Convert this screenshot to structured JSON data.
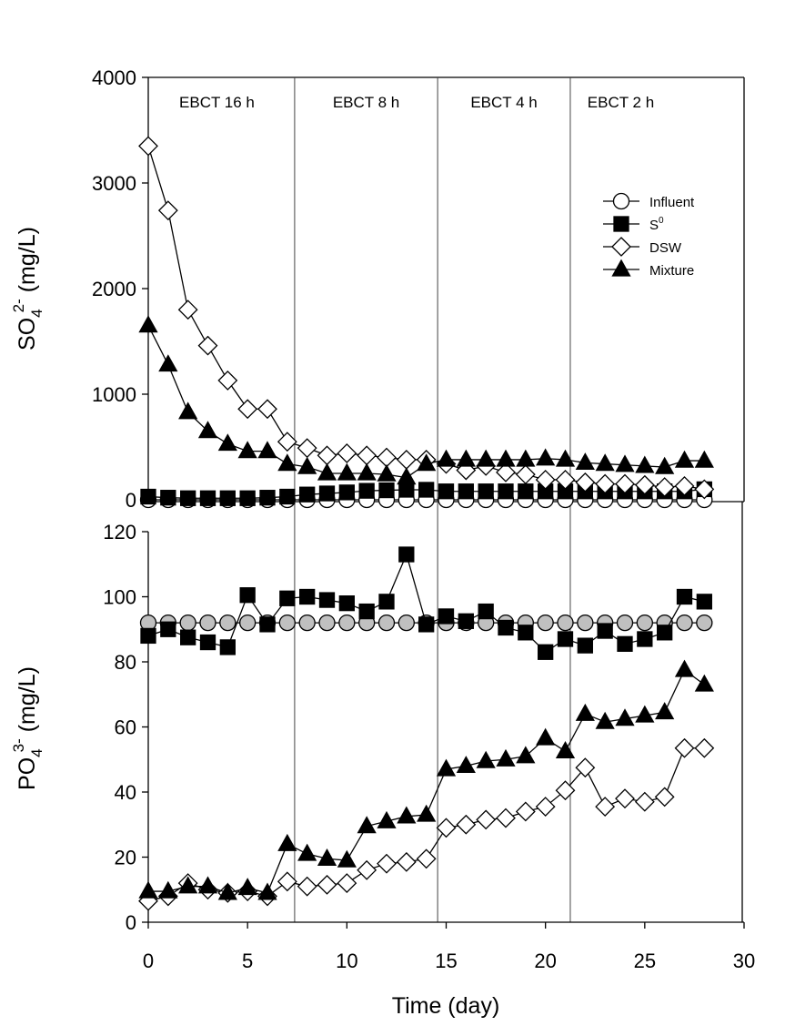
{
  "chart_data": [
    {
      "type": "line",
      "panel": "top",
      "ylabel_main": "SO",
      "ylabel_sub": "4",
      "ylabel_sup": "2-",
      "ylabel_unit": " (mg/L)",
      "ylim": [
        0,
        4000
      ],
      "yticks": [
        "0",
        "1000",
        "2000",
        "3000",
        "4000"
      ],
      "ytick_values": [
        0,
        1000,
        2000,
        3000,
        4000
      ],
      "xlim": [
        0,
        30
      ],
      "periods": [
        {
          "label": "EBCT 16 h",
          "start": 0,
          "end": 7.37
        },
        {
          "label": "EBCT 8 h",
          "start": 7.37,
          "end": 14.57
        },
        {
          "label": "EBCT 4 h",
          "start": 14.57,
          "end": 21.25
        },
        {
          "label": "EBCT 2 h",
          "start": 21.25,
          "end": 30
        }
      ],
      "legend": {
        "placement": "top-right",
        "entries": [
          {
            "name": "Influent",
            "marker": "circle-open",
            "sup": ""
          },
          {
            "name": "S",
            "marker": "square-filled",
            "sup": "0"
          },
          {
            "name": "DSW",
            "marker": "diamond-open",
            "sup": ""
          },
          {
            "name": "Mixture",
            "marker": "triangle-filled",
            "sup": ""
          }
        ]
      },
      "x": [
        0,
        1,
        2,
        3,
        4,
        5,
        6,
        7,
        8,
        9,
        10,
        11,
        12,
        13,
        14,
        15,
        16,
        17,
        18,
        19,
        20,
        21,
        22,
        23,
        24,
        25,
        26,
        27,
        28
      ],
      "series": [
        {
          "name": "Influent",
          "marker": "circle-open",
          "values": [
            0,
            0,
            0,
            0,
            0,
            0,
            0,
            0,
            0,
            0,
            0,
            0,
            0,
            0,
            0,
            0,
            0,
            0,
            0,
            0,
            0,
            0,
            0,
            0,
            0,
            0,
            0,
            0,
            0
          ]
        },
        {
          "name": "S0",
          "marker": "square-filled",
          "values": [
            30,
            20,
            15,
            15,
            15,
            15,
            20,
            30,
            50,
            60,
            70,
            85,
            90,
            95,
            95,
            80,
            80,
            80,
            80,
            80,
            80,
            80,
            80,
            80,
            80,
            80,
            80,
            80,
            100
          ]
        },
        {
          "name": "DSW",
          "marker": "diamond-open",
          "values": [
            3350,
            2740,
            1800,
            1460,
            1130,
            860,
            860,
            550,
            490,
            420,
            440,
            420,
            400,
            380,
            380,
            340,
            280,
            320,
            260,
            240,
            190,
            190,
            165,
            150,
            150,
            140,
            120,
            130,
            100
          ]
        },
        {
          "name": "Mixture",
          "marker": "triangle-filled",
          "values": [
            1650,
            1280,
            830,
            650,
            530,
            460,
            460,
            340,
            310,
            250,
            250,
            250,
            240,
            210,
            340,
            380,
            380,
            380,
            380,
            380,
            390,
            380,
            350,
            340,
            330,
            320,
            310,
            370,
            370
          ]
        }
      ]
    },
    {
      "type": "line",
      "panel": "bottom",
      "ylabel_main": "PO",
      "ylabel_sub": "4",
      "ylabel_sup": "3-",
      "ylabel_unit": " (mg/L)",
      "ylim": [
        0,
        120
      ],
      "yticks": [
        "0",
        "20",
        "40",
        "60",
        "80",
        "100",
        "120"
      ],
      "ytick_values": [
        0,
        20,
        40,
        60,
        80,
        100,
        120
      ],
      "xlim": [
        0,
        30
      ],
      "xlabel": "Time (day)",
      "xticks": [
        "0",
        "5",
        "10",
        "15",
        "20",
        "25",
        "30"
      ],
      "xtick_values": [
        0,
        5,
        10,
        15,
        20,
        25,
        30
      ],
      "x": [
        0,
        1,
        2,
        3,
        4,
        5,
        6,
        7,
        8,
        9,
        10,
        11,
        12,
        13,
        14,
        15,
        16,
        17,
        18,
        19,
        20,
        21,
        22,
        23,
        24,
        25,
        26,
        27,
        28
      ],
      "series": [
        {
          "name": "Influent",
          "marker": "circle-gray",
          "values": [
            92,
            92,
            92,
            92,
            92,
            92,
            92,
            92,
            92,
            92,
            92,
            92,
            92,
            92,
            92,
            92,
            92,
            92,
            92,
            92,
            92,
            92,
            92,
            92,
            92,
            92,
            92,
            92,
            92
          ]
        },
        {
          "name": "S0",
          "marker": "square-filled",
          "values": [
            88,
            90,
            87.5,
            86,
            84.5,
            100.5,
            91.5,
            99.5,
            100,
            99,
            98,
            95.5,
            98.5,
            113,
            91.5,
            94,
            92.5,
            95.5,
            90.5,
            89,
            83,
            87,
            85,
            89.5,
            85.5,
            87,
            89,
            100,
            98.5
          ]
        },
        {
          "name": "DSW",
          "marker": "diamond-open",
          "values": [
            6.5,
            8,
            12,
            10,
            9,
            9.5,
            8,
            12.5,
            11,
            11.5,
            12,
            16,
            18,
            18.5,
            19.5,
            29,
            30,
            31.5,
            32,
            34,
            35.5,
            40.5,
            47.5,
            35.5,
            38,
            37,
            38.5,
            53.5,
            53.5
          ]
        },
        {
          "name": "Mixture",
          "marker": "triangle-filled",
          "values": [
            9.5,
            9.5,
            11,
            11,
            9,
            10.5,
            9,
            24,
            21,
            19.5,
            19,
            29.5,
            31,
            32.5,
            33,
            47,
            48,
            49.5,
            50,
            51,
            56.5,
            52.5,
            64,
            61.5,
            62.5,
            63.5,
            64.5,
            77.5,
            73
          ]
        }
      ]
    }
  ]
}
